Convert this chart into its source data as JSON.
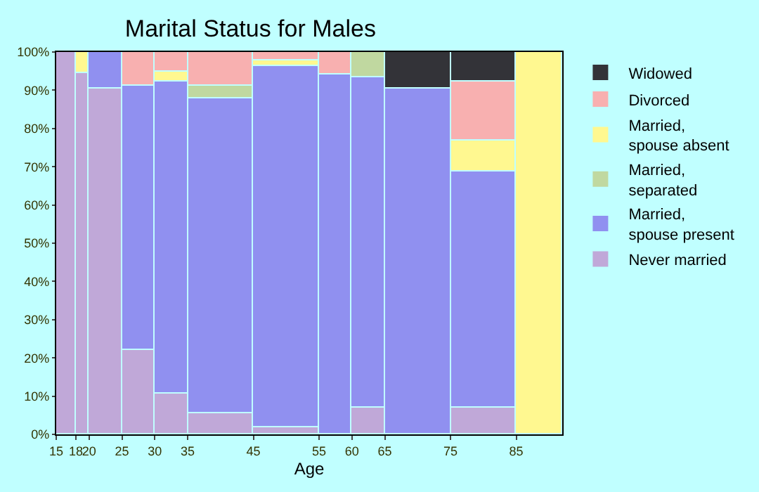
{
  "chart_data": {
    "type": "bar",
    "title": "Marital Status for Males",
    "xlabel": "Age",
    "stacked": true,
    "x": [
      16.5,
      19,
      22.5,
      27.5,
      32.5,
      40,
      50,
      57.5,
      62.5,
      70,
      80,
      88.5
    ],
    "xlim": [
      15,
      92
    ],
    "xticks": [
      15,
      18,
      20,
      25,
      30,
      35,
      45,
      55,
      60,
      65,
      75,
      85
    ],
    "ylim": [
      0,
      100
    ],
    "yticks": [
      {
        "value": 0,
        "label": "0%"
      },
      {
        "value": 10,
        "label": "10%"
      },
      {
        "value": 20,
        "label": "20%"
      },
      {
        "value": 30,
        "label": "30%"
      },
      {
        "value": 40,
        "label": "40%"
      },
      {
        "value": 50,
        "label": "50%"
      },
      {
        "value": 60,
        "label": "60%"
      },
      {
        "value": 70,
        "label": "70%"
      },
      {
        "value": 80,
        "label": "80%"
      },
      {
        "value": 90,
        "label": "90%"
      },
      {
        "value": 100,
        "label": "100%"
      }
    ],
    "legend": "right",
    "series": [
      {
        "name": "Never married",
        "color": "#c0a8d8",
        "values": [
          100,
          94.4,
          90.6,
          22,
          10.6,
          5.5,
          1.8,
          0,
          7,
          0,
          7,
          0
        ]
      },
      {
        "name": "Married, spouse present",
        "color": "#9090f0",
        "values": [
          0,
          0,
          9.4,
          69,
          81.5,
          82.5,
          94.7,
          94.3,
          86.5,
          90.6,
          61.6,
          0
        ]
      },
      {
        "name": "Married, separated",
        "color": "#c0d8a0",
        "values": [
          0,
          0,
          0,
          0,
          0,
          3.3,
          0,
          0,
          6.5,
          0,
          0,
          0
        ]
      },
      {
        "name": "Married, spouse absent",
        "color": "#fff890",
        "values": [
          0,
          5.6,
          0,
          0,
          2.9,
          0,
          1.4,
          0,
          0,
          0,
          8.4,
          100
        ]
      },
      {
        "name": "Divorced",
        "color": "#f8b0b0",
        "values": [
          0,
          0,
          0,
          9,
          5,
          8.7,
          2.1,
          5.7,
          0,
          0,
          15.4,
          0
        ]
      },
      {
        "name": "Widowed",
        "color": "#333338",
        "values": [
          0,
          0,
          0,
          0,
          0,
          0,
          0,
          0,
          0,
          9.4,
          7.6,
          0
        ]
      }
    ]
  }
}
